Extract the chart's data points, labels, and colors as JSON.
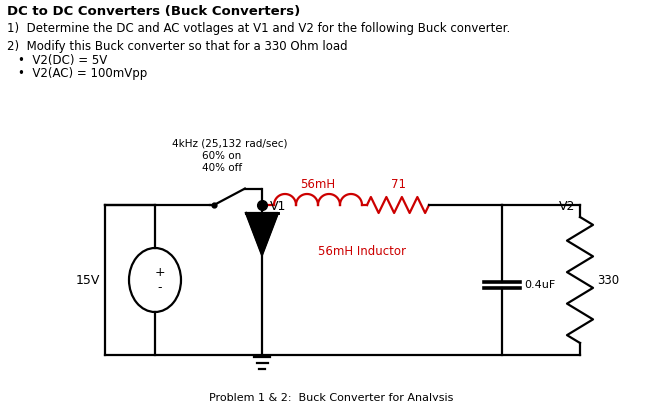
{
  "title": "DC to DC Converters (Buck Converters)",
  "line1": "1)  Determine the DC and AC votlages at V1 and V2 for the following Buck converter.",
  "line2": "2)  Modify this Buck converter so that for a 330 Ohm load",
  "bullet1": "V2(DC) = 5V",
  "bullet2": "V2(AC) = 100mVpp",
  "switch_label1": "4kHz (25,132 rad/sec)",
  "switch_label2": "60% on",
  "switch_label3": "40% off",
  "v1_label": "V1",
  "v2_label": "V2",
  "inductor_label": "56mH",
  "resistor_label": "71",
  "inductor_sublabel": "56mH Inductor",
  "cap_label": "0.4uF",
  "res_label": "330",
  "source_label": "15V",
  "source_plus": "+",
  "source_minus": "-",
  "caption": "Problem 1 & 2:  Buck Converter for Analysis",
  "bg_color": "#ffffff",
  "text_color": "#000000",
  "red_color": "#cc0000",
  "circuit_color": "#000000",
  "figsize": [
    6.63,
    4.01
  ],
  "dpi": 100
}
